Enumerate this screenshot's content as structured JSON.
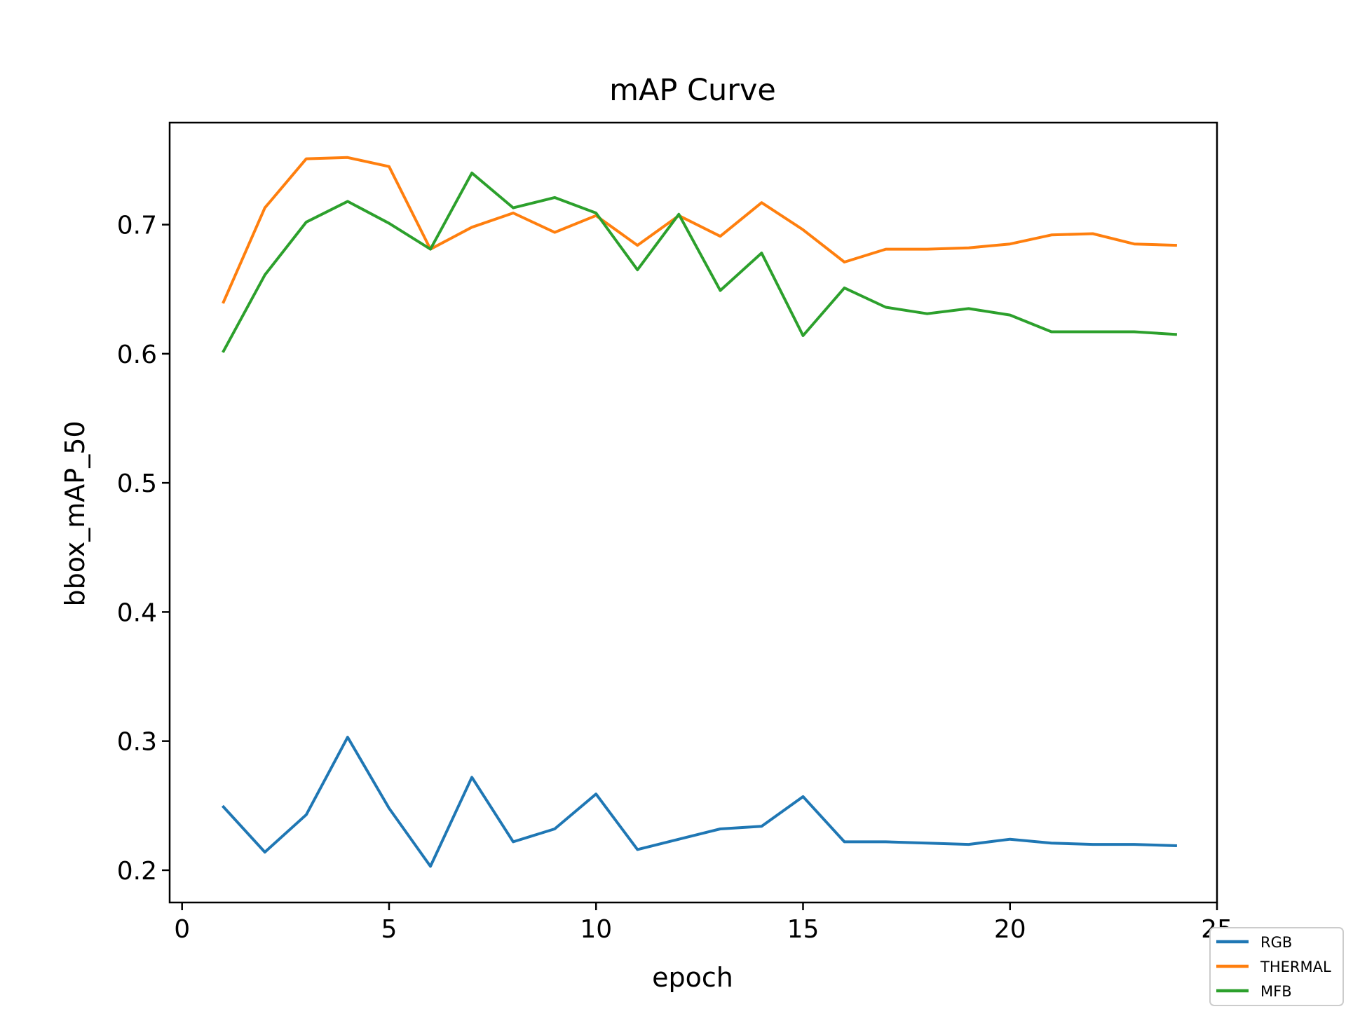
{
  "chart_data": {
    "type": "line",
    "title": "mAP Curve",
    "xlabel": "epoch",
    "ylabel": "bbox_mAP_50",
    "xlim": [
      -0.3,
      25
    ],
    "ylim": [
      0.175,
      0.779
    ],
    "xticks": [
      0,
      5,
      10,
      15,
      20,
      25
    ],
    "yticks": [
      0.2,
      0.3,
      0.4,
      0.5,
      0.6,
      0.7
    ],
    "grid": false,
    "legend_position": "bottom-right",
    "x": [
      1,
      2,
      3,
      4,
      5,
      6,
      7,
      8,
      9,
      10,
      11,
      12,
      13,
      14,
      15,
      16,
      17,
      18,
      19,
      20,
      21,
      22,
      23,
      24
    ],
    "series": [
      {
        "name": "RGB",
        "color": "#1f77b4",
        "values": [
          0.249,
          0.214,
          0.243,
          0.303,
          0.248,
          0.203,
          0.272,
          0.222,
          0.232,
          0.259,
          0.216,
          0.224,
          0.232,
          0.234,
          0.257,
          0.222,
          0.222,
          0.221,
          0.22,
          0.224,
          0.221,
          0.22,
          0.22,
          0.219
        ]
      },
      {
        "name": "THERMAL",
        "color": "#ff7f0e",
        "values": [
          0.64,
          0.713,
          0.751,
          0.752,
          0.745,
          0.681,
          0.698,
          0.709,
          0.694,
          0.707,
          0.684,
          0.707,
          0.691,
          0.717,
          0.696,
          0.671,
          0.681,
          0.681,
          0.682,
          0.685,
          0.692,
          0.693,
          0.685,
          0.684
        ]
      },
      {
        "name": "MFB",
        "color": "#2ca02c",
        "values": [
          0.602,
          0.661,
          0.702,
          0.718,
          0.701,
          0.681,
          0.74,
          0.713,
          0.721,
          0.709,
          0.665,
          0.708,
          0.649,
          0.678,
          0.614,
          0.651,
          0.636,
          0.631,
          0.635,
          0.63,
          0.617,
          0.617,
          0.617,
          0.615
        ]
      }
    ]
  }
}
